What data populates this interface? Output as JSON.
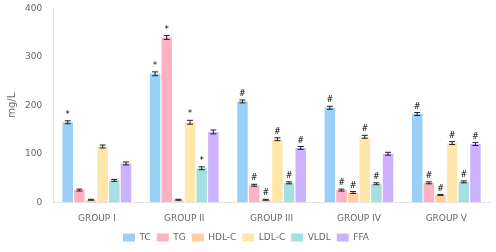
{
  "chart_data": {
    "type": "bar",
    "ylabel": "mg/L",
    "categories": [
      "GROUP I",
      "GROUP II",
      "GROUP III",
      "GROUP IV",
      "GROUP V"
    ],
    "series": [
      {
        "name": "TC",
        "values": [
          165,
          265,
          208,
          195,
          182
        ],
        "errors": [
          3,
          4,
          3,
          3,
          3
        ],
        "annotations": [
          "*",
          "*",
          "#",
          "#",
          "#"
        ]
      },
      {
        "name": "TG",
        "values": [
          25,
          340,
          35,
          25,
          40
        ],
        "errors": [
          2,
          4,
          2,
          2,
          2
        ],
        "annotations": [
          null,
          "*",
          "#",
          "#",
          "#"
        ]
      },
      {
        "name": "HDL-C",
        "values": [
          5,
          5,
          5,
          20,
          15
        ],
        "errors": [
          1,
          1,
          1,
          2,
          1
        ],
        "annotations": [
          null,
          null,
          "#",
          "#",
          "#"
        ]
      },
      {
        "name": "LDL-C",
        "values": [
          115,
          165,
          130,
          135,
          122
        ],
        "errors": [
          3,
          4,
          3,
          3,
          3
        ],
        "annotations": [
          null,
          "*",
          "#",
          "#",
          "#"
        ]
      },
      {
        "name": "VLDL",
        "values": [
          45,
          70,
          40,
          38,
          42
        ],
        "errors": [
          2,
          3,
          2,
          2,
          2
        ],
        "annotations": [
          null,
          "*",
          "#",
          "#",
          "#"
        ]
      },
      {
        "name": "FFA",
        "values": [
          80,
          145,
          112,
          100,
          120
        ],
        "errors": [
          3,
          4,
          3,
          3,
          3
        ],
        "annotations": [
          null,
          null,
          "#",
          null,
          "#"
        ]
      }
    ],
    "ylim": [
      0,
      400
    ],
    "yticks": [
      0,
      100,
      200,
      300,
      400
    ],
    "grid": false,
    "legend": "bottom"
  }
}
